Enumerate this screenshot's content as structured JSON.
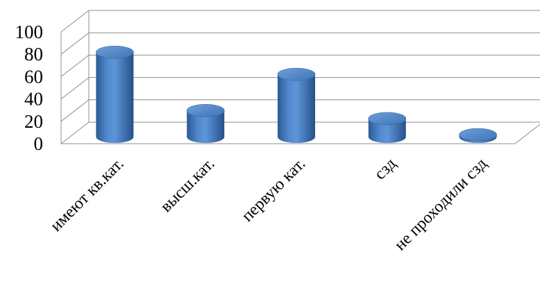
{
  "chart_data": {
    "type": "bar",
    "style": "3d-cylinder",
    "categories": [
      "имеют кв.кат.",
      "высш.кат.",
      "первую кат.",
      "сзд",
      "не проходили сзд"
    ],
    "values": [
      84,
      26,
      62,
      18,
      2
    ],
    "ylim": [
      0,
      100
    ],
    "yticks": [
      0,
      20,
      40,
      60,
      80,
      100
    ],
    "title": "",
    "xlabel": "",
    "ylabel": "",
    "grid": true,
    "legend": "none",
    "bar_color": "#4a7ebb"
  }
}
